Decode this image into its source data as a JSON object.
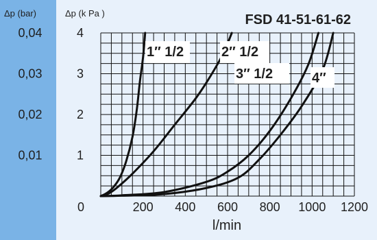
{
  "colors": {
    "panel_background": "#e8f1fb",
    "bar_axis_strip": "#7ab3e6",
    "grid": "#111111",
    "curve": "#111111",
    "label_box": "#ffffff"
  },
  "chart_data": {
    "type": "line",
    "title": "FSD 41-51-61-62",
    "xlabel": "l/min",
    "ylabel": "Δp (k Pa )",
    "secondary_ylabel": "Δp (bar)",
    "xlim": [
      0,
      1200
    ],
    "ylim": [
      0,
      4
    ],
    "x_ticks": [
      "0",
      "200",
      "400",
      "600",
      "800",
      "1000",
      "1200"
    ],
    "y_ticks": [
      "1",
      "2",
      "3",
      "4"
    ],
    "secondary_y_ticks": [
      "0,01",
      "0,02",
      "0,03",
      "0,04"
    ],
    "grid": true,
    "series": [
      {
        "name": "1″ 1/2",
        "points": [
          [
            0,
            0
          ],
          [
            30,
            0.08
          ],
          [
            60,
            0.22
          ],
          [
            90,
            0.45
          ],
          [
            120,
            0.85
          ],
          [
            150,
            1.45
          ],
          [
            170,
            2.1
          ],
          [
            185,
            2.8
          ],
          [
            200,
            3.4
          ],
          [
            210,
            4.0
          ]
        ]
      },
      {
        "name": "2″ 1/2",
        "points": [
          [
            0,
            0
          ],
          [
            40,
            0.07
          ],
          [
            80,
            0.22
          ],
          [
            150,
            0.55
          ],
          [
            250,
            1.1
          ],
          [
            350,
            1.75
          ],
          [
            450,
            2.4
          ],
          [
            520,
            2.95
          ],
          [
            580,
            3.5
          ],
          [
            620,
            4.0
          ]
        ]
      },
      {
        "name": "3″ 1/2",
        "points": [
          [
            0,
            0
          ],
          [
            100,
            0.02
          ],
          [
            300,
            0.1
          ],
          [
            500,
            0.35
          ],
          [
            600,
            0.6
          ],
          [
            700,
            1.0
          ],
          [
            800,
            1.6
          ],
          [
            900,
            2.4
          ],
          [
            980,
            3.2
          ],
          [
            1030,
            4.0
          ]
        ]
      },
      {
        "name": "4″",
        "points": [
          [
            0,
            0
          ],
          [
            100,
            0.01
          ],
          [
            300,
            0.05
          ],
          [
            500,
            0.2
          ],
          [
            650,
            0.45
          ],
          [
            750,
            0.9
          ],
          [
            850,
            1.5
          ],
          [
            950,
            2.2
          ],
          [
            1050,
            3.1
          ],
          [
            1100,
            4.0
          ]
        ]
      }
    ]
  }
}
